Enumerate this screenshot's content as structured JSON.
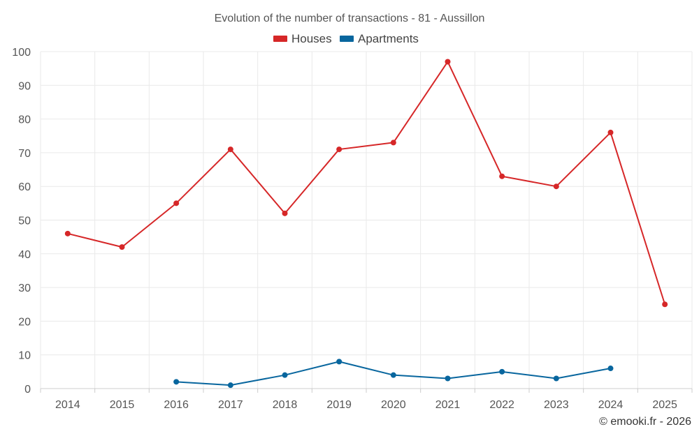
{
  "chart_data": {
    "type": "line",
    "title": "Evolution of the number of transactions - 81 - Aussillon",
    "categories": [
      "2014",
      "2015",
      "2016",
      "2017",
      "2018",
      "2019",
      "2020",
      "2021",
      "2022",
      "2023",
      "2024",
      "2025"
    ],
    "series": [
      {
        "name": "Houses",
        "color": "#d62728",
        "values": [
          46,
          42,
          55,
          71,
          52,
          71,
          73,
          97,
          63,
          60,
          76,
          25
        ]
      },
      {
        "name": "Apartments",
        "color": "#08669e",
        "values": [
          null,
          null,
          2,
          1,
          4,
          8,
          4,
          3,
          5,
          3,
          6,
          null
        ]
      }
    ],
    "ylim": [
      0,
      100
    ],
    "yticks": [
      0,
      10,
      20,
      30,
      40,
      50,
      60,
      70,
      80,
      90,
      100
    ],
    "legend_position": "top-center",
    "grid": true
  },
  "credit": "© emooki.fr - 2026"
}
